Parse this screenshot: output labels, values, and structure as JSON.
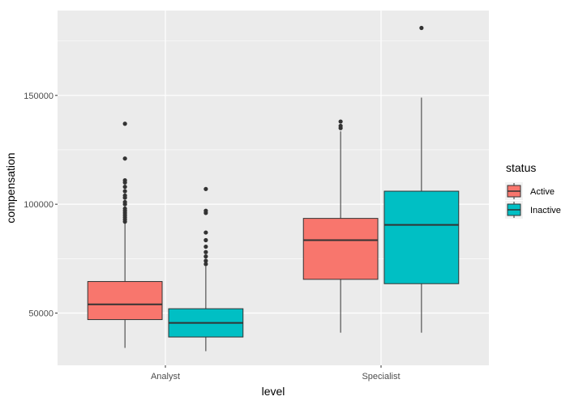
{
  "chart_data": {
    "type": "boxplot",
    "xlabel": "level",
    "ylabel": "compensation",
    "categories": [
      "Analyst",
      "Specialist"
    ],
    "ylim": [
      26000,
      189000
    ],
    "yticks": [
      50000,
      100000,
      150000
    ],
    "ytick_labels": [
      "50000",
      "100000",
      "150000"
    ],
    "grid": true,
    "legend": {
      "title": "status",
      "position": "right"
    },
    "series": [
      {
        "name": "Active",
        "color": "#F8766D",
        "boxes": [
          {
            "category": "Analyst",
            "min": 34000,
            "q1": 47000,
            "median": 54000,
            "q3": 64500,
            "max": 91500,
            "outliers": [
              92000,
              93000,
              94000,
              95000,
              96000,
              97000,
              98000,
              100000,
              101000,
              103000,
              104000,
              106000,
              108000,
              110000,
              111000,
              121000,
              137000
            ]
          },
          {
            "category": "Specialist",
            "min": 41000,
            "q1": 65500,
            "median": 83500,
            "q3": 93500,
            "max": 133500,
            "outliers": [
              135000,
              136000,
              138000
            ]
          }
        ]
      },
      {
        "name": "Inactive",
        "color": "#00BFC4",
        "boxes": [
          {
            "category": "Analyst",
            "min": 32500,
            "q1": 39000,
            "median": 45500,
            "q3": 52000,
            "max": 71500,
            "outliers": [
              72500,
              74000,
              76000,
              78000,
              80500,
              83500,
              87000,
              96000,
              97000,
              107000
            ]
          },
          {
            "category": "Specialist",
            "min": 41000,
            "q1": 63500,
            "median": 90500,
            "q3": 106000,
            "max": 149000,
            "outliers": [
              181000
            ]
          }
        ]
      }
    ]
  }
}
